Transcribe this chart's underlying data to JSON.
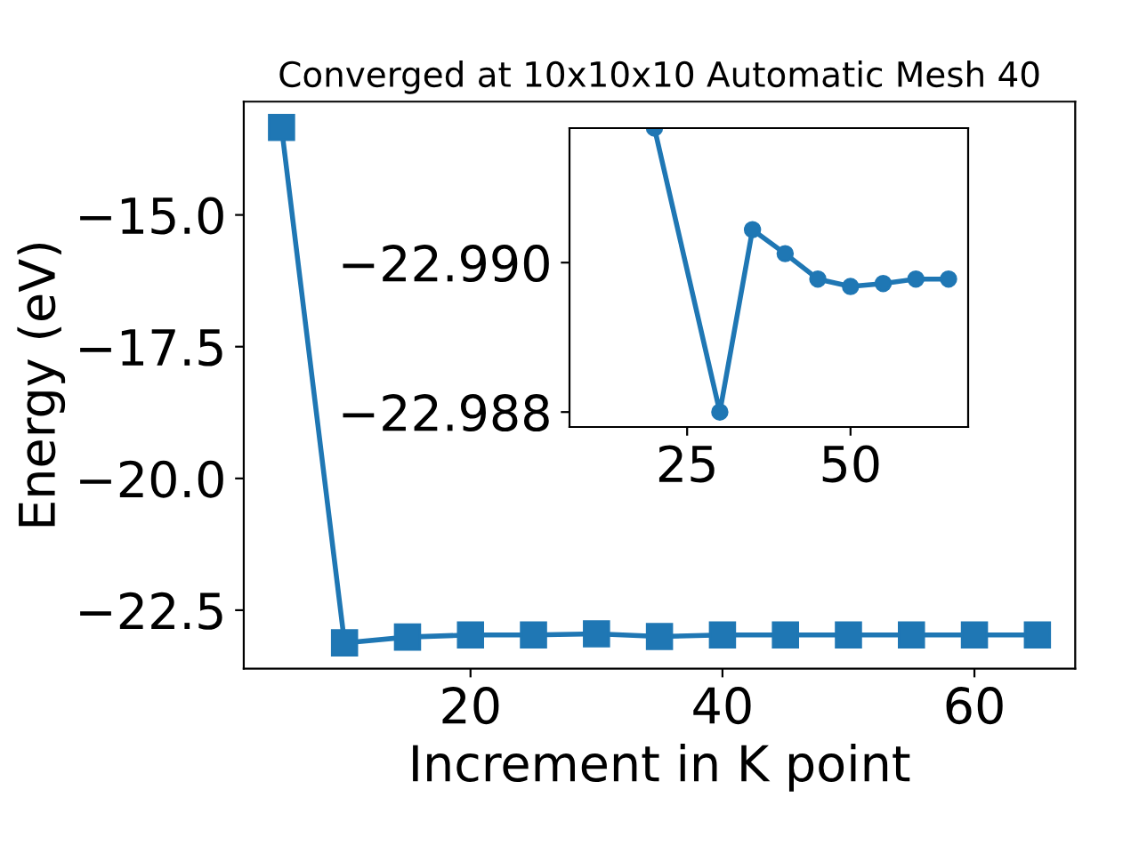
{
  "chart_data": [
    {
      "type": "line",
      "title": "Converged at 10x10x10 Automatic Mesh 40",
      "xlabel": "Increment in K point",
      "ylabel": "Energy (eV)",
      "x": [
        5,
        10,
        15,
        20,
        25,
        30,
        35,
        40,
        45,
        50,
        55,
        60,
        65
      ],
      "series": [
        {
          "color": "#1f77b4",
          "values": [
            -13.34,
            -23.12,
            -23.01,
            -22.97,
            -22.97,
            -22.95,
            -23.0,
            -22.97,
            -22.97,
            -22.97,
            -22.97,
            -22.97,
            -22.97
          ]
        }
      ],
      "xlim": [
        2,
        68
      ],
      "ylim": [
        -23.61,
        -12.85
      ],
      "xticks": [
        20,
        40,
        60
      ],
      "yticks": [
        {
          "value": -15,
          "label": "−15.0"
        },
        -17.5,
        {
          "value": -20,
          "label": "−20.0"
        },
        -22.5
      ],
      "marker": "square"
    },
    {
      "type": "line",
      "x": [
        20,
        30,
        35,
        40,
        45,
        50,
        55,
        60,
        65
      ],
      "series": [
        {
          "color": "#1f77b4",
          "values": [
            -22.9918,
            -22.988,
            -22.99044,
            -22.99012,
            -22.98978,
            -22.98968,
            -22.98972,
            -22.98978,
            -22.98978
          ]
        }
      ],
      "xlim": [
        7,
        68
      ],
      "ylim": [
        -22.9878,
        -22.9918
      ],
      "xticks": [
        25,
        50
      ],
      "yticks": [
        {
          "value": -22.99,
          "label": "−22.990"
        },
        {
          "value": -22.988,
          "label": "−22.988"
        }
      ],
      "marker": "circle"
    }
  ]
}
